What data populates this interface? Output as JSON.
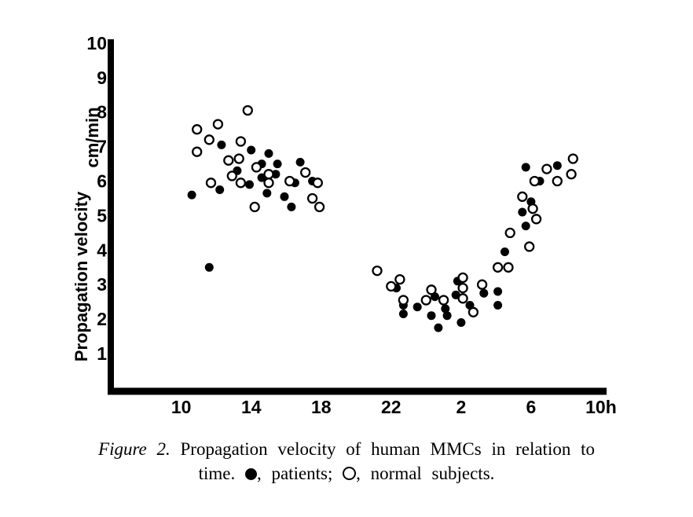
{
  "caption": {
    "figure_label": "Figure 2.",
    "line1_rest": "Propagation velocity of human MMCs in relation to",
    "line2_prefix": "time.",
    "legend_items": [
      {
        "marker": "filled-circle",
        "label": ", patients;"
      },
      {
        "marker": "open-circle",
        "label": ", normal subjects."
      }
    ]
  },
  "chart_data": {
    "type": "scatter",
    "title": "",
    "ylabel": "Propagation velocity",
    "ylabel_unit": "cm/min",
    "x_axis_note": "time of day in continuous hours; 24+ means after midnight (2=26, 6=30, 10h=34)",
    "xlim": [
      6,
      34.5
    ],
    "ylim": [
      0,
      10.2
    ],
    "grid": false,
    "legend_position": "caption below figure",
    "x_ticks": [
      {
        "label": "10",
        "t": 10
      },
      {
        "label": "14",
        "t": 14
      },
      {
        "label": "18",
        "t": 18
      },
      {
        "label": "22",
        "t": 22
      },
      {
        "label": "2",
        "t": 26
      },
      {
        "label": "6",
        "t": 30
      },
      {
        "label": "10h",
        "t": 34
      }
    ],
    "y_ticks": [
      {
        "label": "10",
        "v": 10
      },
      {
        "label": "9",
        "v": 9
      },
      {
        "label": "8",
        "v": 8
      },
      {
        "label": "7",
        "v": 7
      },
      {
        "label": "6",
        "v": 6
      },
      {
        "label": "5",
        "v": 5
      },
      {
        "label": "4",
        "v": 4
      },
      {
        "label": "3",
        "v": 3
      },
      {
        "label": "2",
        "v": 2
      },
      {
        "label": "1",
        "v": 1
      }
    ],
    "series": [
      {
        "name": "patients",
        "marker": "filled",
        "color": "#000000",
        "points": [
          [
            10.6,
            5.6
          ],
          [
            12.2,
            5.75
          ],
          [
            12.3,
            7.05
          ],
          [
            13.2,
            6.3
          ],
          [
            13.9,
            5.9
          ],
          [
            14.0,
            6.9
          ],
          [
            14.6,
            6.5
          ],
          [
            14.6,
            6.1
          ],
          [
            14.9,
            5.65
          ],
          [
            15.0,
            6.8
          ],
          [
            15.4,
            6.2
          ],
          [
            15.5,
            6.5
          ],
          [
            15.9,
            5.55
          ],
          [
            16.3,
            5.25
          ],
          [
            16.5,
            5.95
          ],
          [
            16.8,
            6.55
          ],
          [
            17.5,
            6.0
          ],
          [
            11.6,
            3.5
          ],
          [
            22.3,
            2.9
          ],
          [
            22.7,
            2.4
          ],
          [
            22.7,
            2.15
          ],
          [
            23.5,
            2.35
          ],
          [
            24.3,
            2.1
          ],
          [
            24.5,
            2.65
          ],
          [
            24.7,
            1.75
          ],
          [
            25.1,
            2.3
          ],
          [
            25.2,
            2.1
          ],
          [
            25.7,
            2.7
          ],
          [
            25.8,
            3.1
          ],
          [
            26.0,
            1.9
          ],
          [
            26.5,
            2.4
          ],
          [
            27.3,
            2.75
          ],
          [
            28.1,
            2.8
          ],
          [
            28.1,
            2.4
          ],
          [
            28.5,
            3.95
          ],
          [
            29.5,
            5.1
          ],
          [
            29.7,
            4.7
          ],
          [
            29.7,
            6.4
          ],
          [
            30.0,
            5.4
          ],
          [
            30.5,
            6.0
          ],
          [
            31.5,
            6.45
          ]
        ]
      },
      {
        "name": "normal subjects",
        "marker": "open",
        "color": "#000000",
        "points": [
          [
            10.9,
            7.5
          ],
          [
            10.9,
            6.85
          ],
          [
            11.6,
            7.2
          ],
          [
            11.7,
            5.95
          ],
          [
            12.1,
            7.65
          ],
          [
            12.7,
            6.6
          ],
          [
            12.9,
            6.15
          ],
          [
            13.3,
            6.65
          ],
          [
            13.4,
            7.15
          ],
          [
            13.4,
            5.95
          ],
          [
            13.8,
            8.05
          ],
          [
            14.2,
            5.25
          ],
          [
            14.3,
            6.4
          ],
          [
            15.0,
            6.2
          ],
          [
            15.0,
            5.95
          ],
          [
            16.2,
            6.0
          ],
          [
            17.1,
            6.25
          ],
          [
            17.5,
            5.5
          ],
          [
            17.8,
            5.95
          ],
          [
            17.9,
            5.25
          ],
          [
            21.2,
            3.4
          ],
          [
            22.0,
            2.95
          ],
          [
            22.5,
            3.15
          ],
          [
            22.7,
            2.55
          ],
          [
            24.0,
            2.55
          ],
          [
            24.3,
            2.85
          ],
          [
            25.0,
            2.55
          ],
          [
            26.1,
            3.2
          ],
          [
            26.1,
            2.9
          ],
          [
            26.1,
            2.6
          ],
          [
            26.7,
            2.2
          ],
          [
            27.2,
            3.0
          ],
          [
            28.1,
            3.5
          ],
          [
            28.7,
            3.5
          ],
          [
            28.8,
            4.5
          ],
          [
            29.9,
            4.1
          ],
          [
            30.1,
            5.2
          ],
          [
            30.3,
            4.9
          ],
          [
            29.5,
            5.55
          ],
          [
            30.2,
            6.0
          ],
          [
            30.9,
            6.35
          ],
          [
            31.5,
            6.0
          ],
          [
            32.3,
            6.2
          ],
          [
            32.4,
            6.65
          ]
        ]
      }
    ]
  }
}
